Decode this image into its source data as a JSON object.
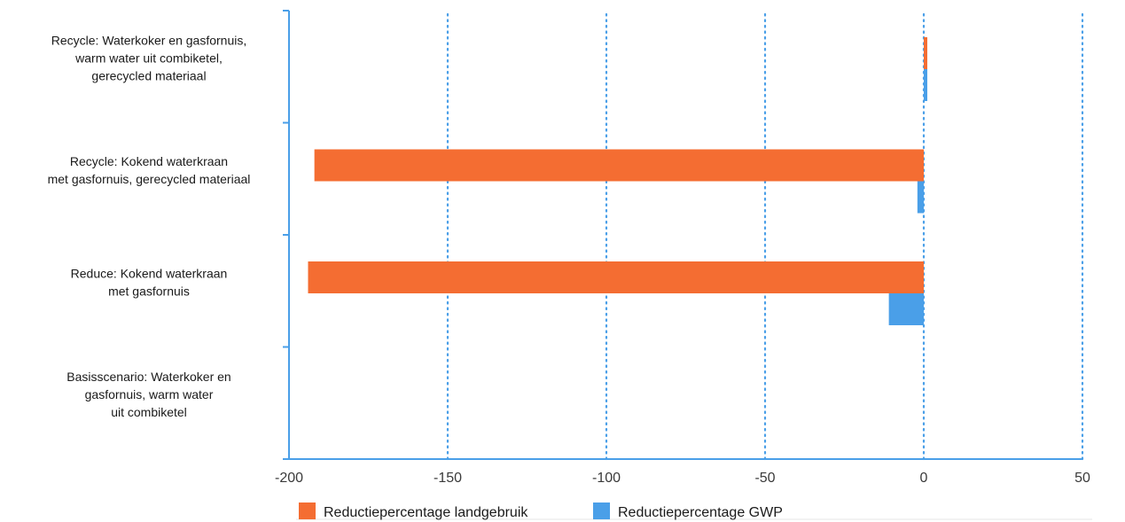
{
  "chart_data": {
    "type": "bar",
    "orientation": "horizontal",
    "categories": [
      "Recycle: Waterkoker en gasfornuis, warm water uit combiketel, gerecycled materiaal",
      "Recycle: Kokend waterkraan met gasfornuis, gerecycled materiaal",
      "Reduce: Kokend waterkraan met gasfornuis",
      "Basisscenario: Waterkoker en gasfornuis, warm water uit combiketel"
    ],
    "category_lines": [
      [
        "Recycle: Waterkoker en gasfornuis,",
        "warm water uit combiketel,",
        "gerecycled materiaal"
      ],
      [
        "Recycle: Kokend waterkraan",
        "met gasfornuis, gerecycled materiaal"
      ],
      [
        "Reduce: Kokend waterkraan",
        "met gasfornuis"
      ],
      [
        "Basisscenario: Waterkoker en",
        "gasfornuis, warm water",
        "uit combiketel"
      ]
    ],
    "series": [
      {
        "name": "Reductiepercentage landgebruik",
        "color": "#f46d32",
        "values": [
          1,
          -192,
          -194,
          0
        ]
      },
      {
        "name": "Reductiepercentage GWP",
        "color": "#4a9fe8",
        "values": [
          1,
          -2,
          -11,
          0
        ]
      }
    ],
    "xlim": [
      -200,
      50
    ],
    "xticks": [
      -200,
      -150,
      -100,
      -50,
      0,
      50
    ],
    "xtick_labels": [
      "-200",
      "-150",
      "-100",
      "-50",
      "0",
      "50"
    ],
    "grid": "vertical-dotted",
    "axis_color": "#4a9fe8",
    "legend_placement": "bottom-center"
  }
}
